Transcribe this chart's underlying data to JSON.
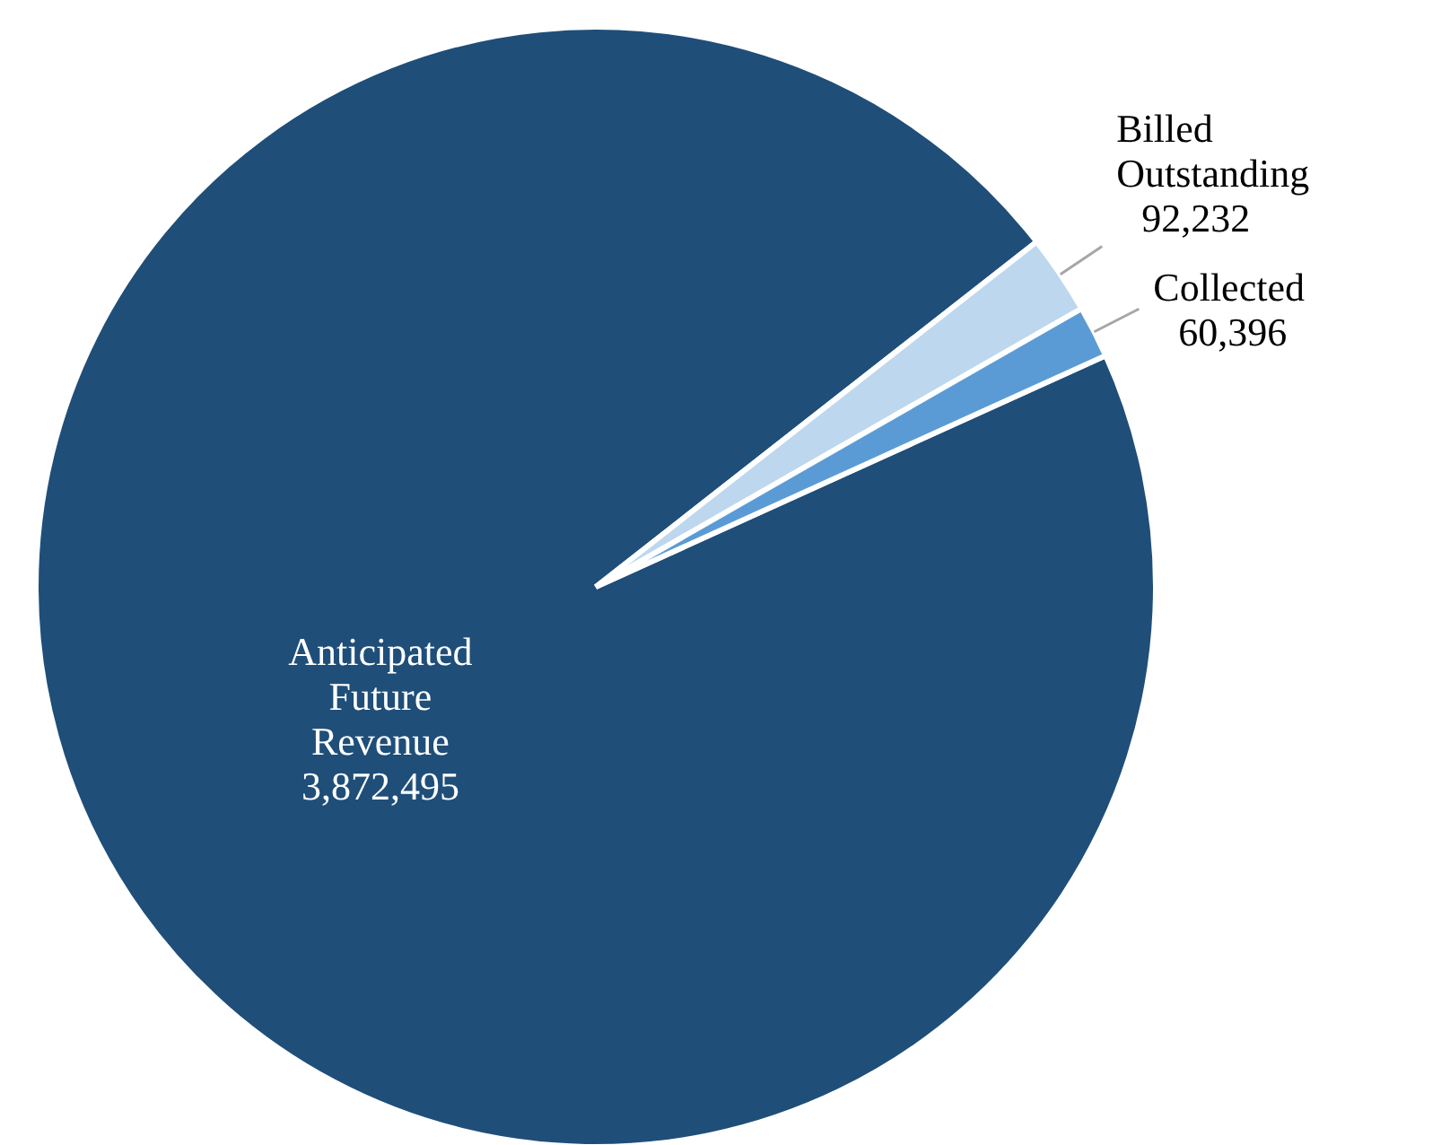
{
  "chart_data": {
    "type": "pie",
    "categories": [
      "Anticipated Future Revenue",
      "Billed Outstanding",
      "Collected"
    ],
    "values": [
      3872495,
      92232,
      60396
    ],
    "colors": [
      "#1f4e79",
      "#bdd7ee",
      "#5b9bd5"
    ],
    "value_labels": [
      "3,872,495",
      "92,232",
      "60,396"
    ],
    "legend": false
  }
}
